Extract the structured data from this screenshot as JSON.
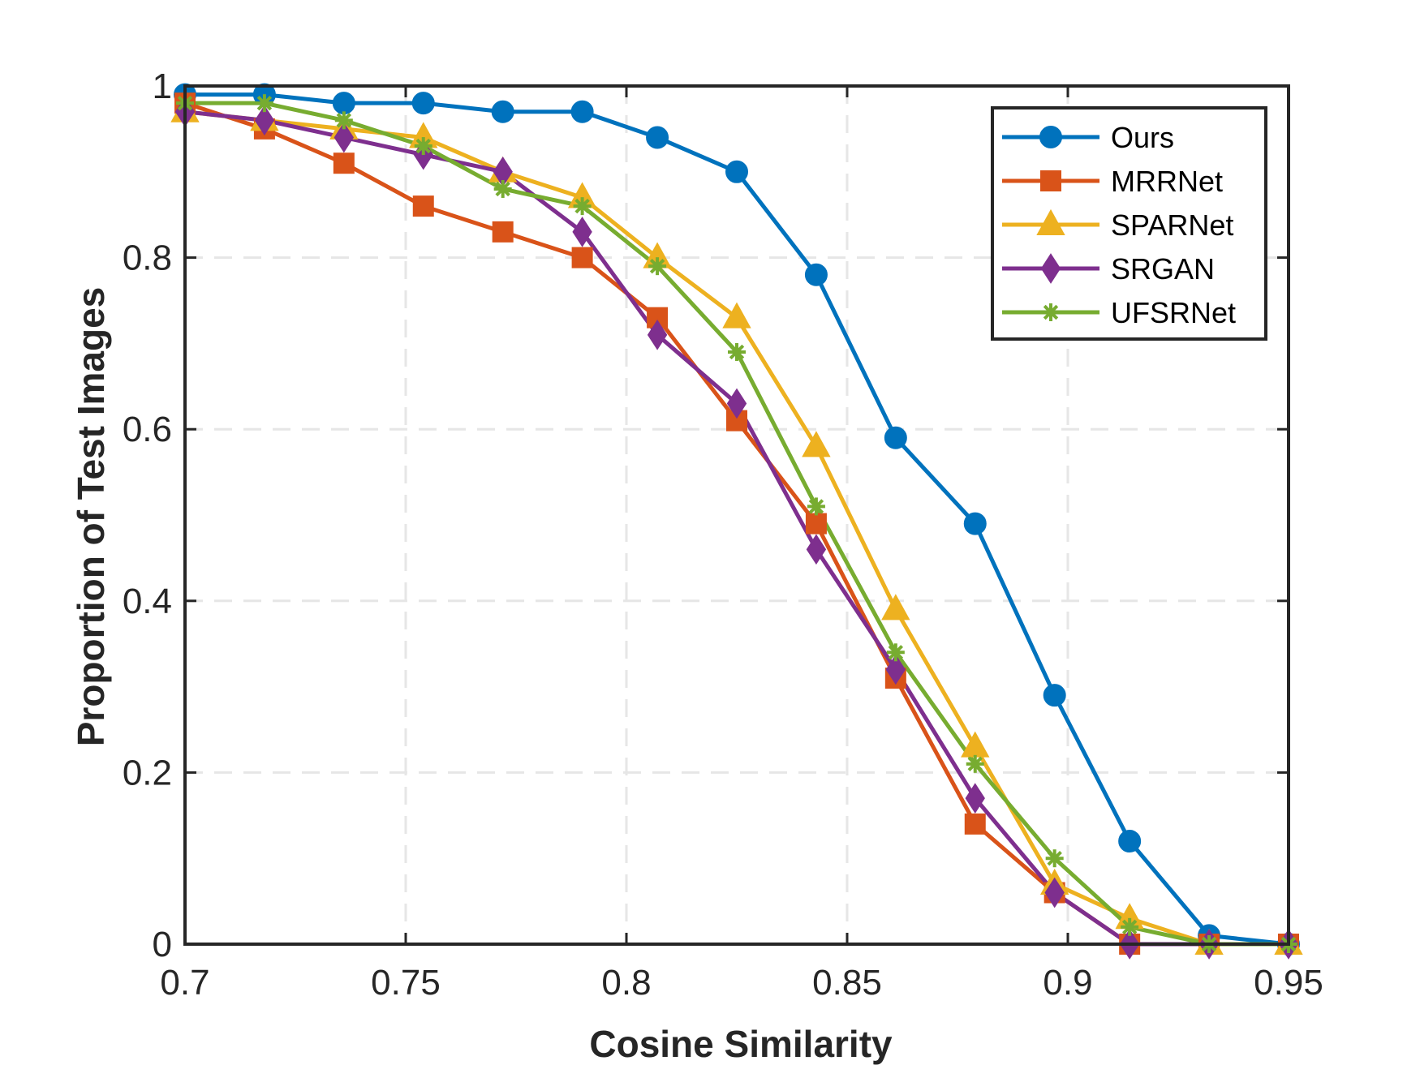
{
  "chart_data": {
    "type": "line",
    "xlabel": "Cosine Similarity",
    "ylabel": "Proportion of Test Images",
    "xlim": [
      0.7,
      0.95
    ],
    "ylim": [
      0,
      1
    ],
    "xticks": [
      "0.7",
      "0.75",
      "0.8",
      "0.85",
      "0.9",
      "0.95"
    ],
    "yticks": [
      "0",
      "0.2",
      "0.4",
      "0.6",
      "0.8",
      "1"
    ],
    "grid": true,
    "legend_position": "top-right",
    "x": [
      0.7,
      0.718,
      0.736,
      0.754,
      0.772,
      0.79,
      0.807,
      0.825,
      0.843,
      0.861,
      0.879,
      0.897,
      0.914,
      0.932,
      0.95
    ],
    "series": [
      {
        "name": "Ours",
        "color": "#0072BD",
        "marker": "circle",
        "values": [
          0.99,
          0.99,
          0.98,
          0.98,
          0.97,
          0.97,
          0.94,
          0.9,
          0.78,
          0.59,
          0.49,
          0.29,
          0.12,
          0.01,
          0.0
        ]
      },
      {
        "name": "MRRNet",
        "color": "#D95319",
        "marker": "square",
        "values": [
          0.98,
          0.95,
          0.91,
          0.86,
          0.83,
          0.8,
          0.73,
          0.61,
          0.49,
          0.31,
          0.14,
          0.06,
          0.0,
          0.0,
          0.0
        ]
      },
      {
        "name": "SPARNet",
        "color": "#EDB120",
        "marker": "triangle",
        "values": [
          0.97,
          0.96,
          0.95,
          0.94,
          0.9,
          0.87,
          0.8,
          0.73,
          0.58,
          0.39,
          0.23,
          0.07,
          0.03,
          0.0,
          0.0
        ]
      },
      {
        "name": "SRGAN",
        "color": "#7E2F8E",
        "marker": "diamond",
        "values": [
          0.97,
          0.96,
          0.94,
          0.92,
          0.9,
          0.83,
          0.71,
          0.63,
          0.46,
          0.32,
          0.17,
          0.06,
          0.0,
          0.0,
          0.0
        ]
      },
      {
        "name": "UFSRNet",
        "color": "#77AC30",
        "marker": "asterisk",
        "values": [
          0.98,
          0.98,
          0.96,
          0.93,
          0.88,
          0.86,
          0.79,
          0.69,
          0.51,
          0.34,
          0.21,
          0.1,
          0.02,
          0.0,
          0.0
        ]
      }
    ]
  }
}
